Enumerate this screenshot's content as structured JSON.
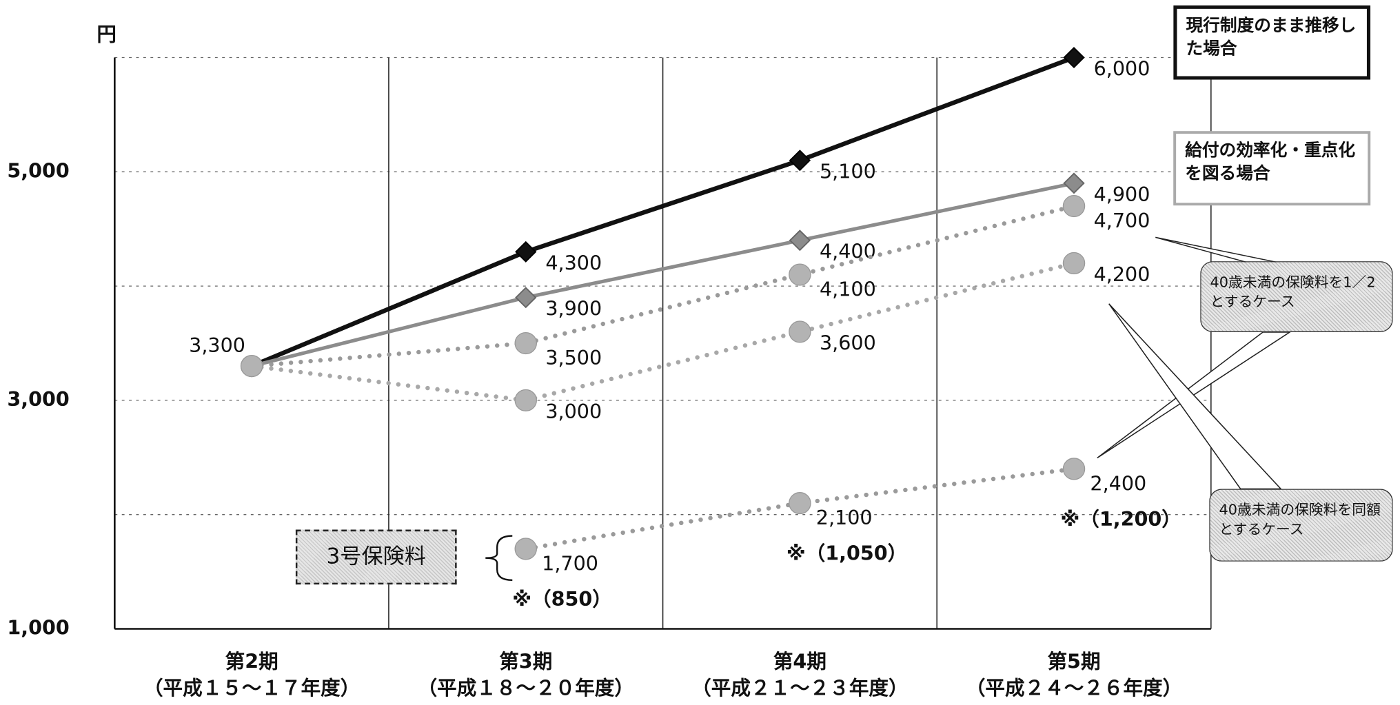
{
  "chart_data": {
    "type": "line",
    "y_label": "円",
    "categories": [
      "第2期",
      "第3期",
      "第4期",
      "第5期"
    ],
    "category_sublabels": [
      "（平成１５～１７年度）",
      "（平成１８～２０年度）",
      "（平成２１～２３年度）",
      "（平成２４～２６年度）"
    ],
    "ylim": [
      1000,
      6000
    ],
    "yticks": [
      {
        "value": 1000,
        "label": "1,000"
      },
      {
        "value": 2000,
        "label": null
      },
      {
        "value": 3000,
        "label": "3,000"
      },
      {
        "value": 4000,
        "label": null
      },
      {
        "value": 5000,
        "label": "5,000"
      },
      {
        "value": 6000,
        "label": null
      }
    ],
    "grid": true,
    "series": [
      {
        "name": "現行制度のまま推移した場合",
        "color": "#111111",
        "style": "solid",
        "marker": "diamond",
        "values": [
          3300,
          4300,
          5100,
          6000
        ],
        "value_labels": [
          "3,300",
          "4,300",
          "5,100",
          "6,000"
        ]
      },
      {
        "name": "給付の効率化・重点化を図る場合",
        "color": "#8c8c8c",
        "style": "solid",
        "marker": "diamond",
        "values": [
          3300,
          3900,
          4400,
          4900
        ],
        "value_labels": [
          null,
          "3,900",
          "4,400",
          "4,900"
        ]
      },
      {
        "name": "40歳未満の保険料を1／2とするケース",
        "color": "#9a9a9a",
        "style": "dotted",
        "marker": "circle",
        "values": [
          3300,
          3500,
          4100,
          4700
        ],
        "value_labels": [
          null,
          "3,500",
          "4,100",
          "4,700"
        ]
      },
      {
        "name": "40歳未満の保険料を同額とするケース",
        "color": "#a8a8a8",
        "style": "dotted",
        "marker": "circle",
        "values": [
          3300,
          3000,
          3600,
          4200
        ],
        "value_labels": [
          null,
          "3,000",
          "3,600",
          "4,200"
        ]
      },
      {
        "name": "3号保険料",
        "color": "#9a9a9a",
        "style": "dotted",
        "marker": "circle",
        "values": [
          null,
          1700,
          2100,
          2400
        ],
        "value_labels": [
          null,
          "1,700",
          "2,100",
          "2,400"
        ],
        "notes": [
          null,
          "※（850）",
          "※（1,050）",
          "※（1,200）"
        ]
      }
    ]
  }
}
